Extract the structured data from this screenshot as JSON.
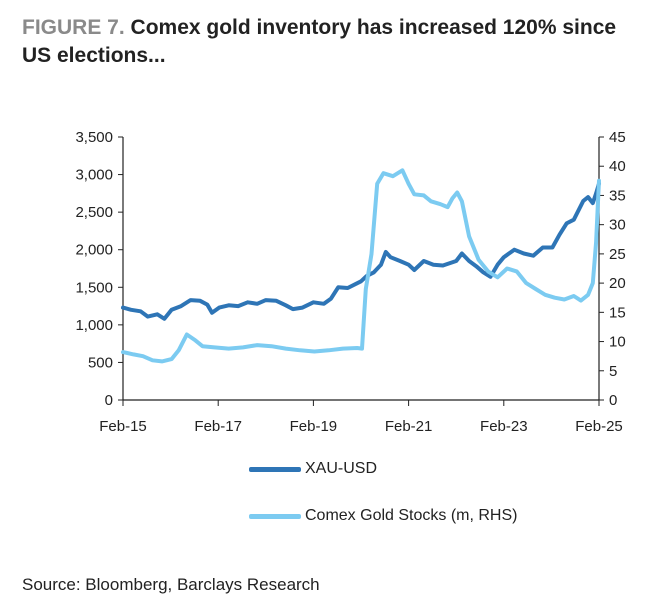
{
  "title": {
    "figure_label": "FIGURE 7.",
    "text": "Comex gold inventory has increased 120% since US elections..."
  },
  "source": "Source: Bloomberg, Barclays Research",
  "chart_data": {
    "type": "line",
    "x_ticks": [
      "Feb-15",
      "Feb-17",
      "Feb-19",
      "Feb-21",
      "Feb-23",
      "Feb-25"
    ],
    "x_range": [
      2015.08,
      2025.08
    ],
    "y_left": {
      "ticks": [
        "0",
        "500",
        "1,000",
        "1,500",
        "2,000",
        "2,500",
        "3,000",
        "3,500"
      ],
      "ylim": [
        0,
        3500
      ]
    },
    "y_right": {
      "ticks": [
        "0",
        "5",
        "10",
        "15",
        "20",
        "25",
        "30",
        "35",
        "40",
        "45"
      ],
      "ylim": [
        0,
        45
      ]
    },
    "grid": false,
    "legend": "bottom",
    "series": [
      {
        "name": "XAU-USD",
        "axis": "left",
        "color": "#2e75b6",
        "points": [
          [
            2015.08,
            1230
          ],
          [
            2015.25,
            1200
          ],
          [
            2015.45,
            1180
          ],
          [
            2015.6,
            1110
          ],
          [
            2015.8,
            1140
          ],
          [
            2015.95,
            1080
          ],
          [
            2016.1,
            1200
          ],
          [
            2016.3,
            1250
          ],
          [
            2016.5,
            1330
          ],
          [
            2016.7,
            1320
          ],
          [
            2016.85,
            1270
          ],
          [
            2016.95,
            1160
          ],
          [
            2017.1,
            1230
          ],
          [
            2017.3,
            1260
          ],
          [
            2017.5,
            1250
          ],
          [
            2017.7,
            1300
          ],
          [
            2017.9,
            1280
          ],
          [
            2018.08,
            1330
          ],
          [
            2018.3,
            1320
          ],
          [
            2018.5,
            1260
          ],
          [
            2018.65,
            1210
          ],
          [
            2018.85,
            1230
          ],
          [
            2019.08,
            1300
          ],
          [
            2019.3,
            1280
          ],
          [
            2019.45,
            1350
          ],
          [
            2019.6,
            1500
          ],
          [
            2019.8,
            1490
          ],
          [
            2020.08,
            1580
          ],
          [
            2020.2,
            1650
          ],
          [
            2020.35,
            1700
          ],
          [
            2020.5,
            1800
          ],
          [
            2020.6,
            1970
          ],
          [
            2020.7,
            1900
          ],
          [
            2020.9,
            1850
          ],
          [
            2021.08,
            1800
          ],
          [
            2021.2,
            1730
          ],
          [
            2021.4,
            1850
          ],
          [
            2021.6,
            1800
          ],
          [
            2021.8,
            1790
          ],
          [
            2022.08,
            1850
          ],
          [
            2022.2,
            1950
          ],
          [
            2022.35,
            1850
          ],
          [
            2022.5,
            1780
          ],
          [
            2022.65,
            1700
          ],
          [
            2022.8,
            1640
          ],
          [
            2022.95,
            1800
          ],
          [
            2023.08,
            1900
          ],
          [
            2023.3,
            2000
          ],
          [
            2023.5,
            1950
          ],
          [
            2023.7,
            1920
          ],
          [
            2023.9,
            2030
          ],
          [
            2024.1,
            2030
          ],
          [
            2024.25,
            2200
          ],
          [
            2024.4,
            2350
          ],
          [
            2024.55,
            2400
          ],
          [
            2024.75,
            2650
          ],
          [
            2024.85,
            2700
          ],
          [
            2024.95,
            2620
          ],
          [
            2025.02,
            2750
          ],
          [
            2025.08,
            2880
          ]
        ]
      },
      {
        "name": "Comex Gold Stocks  (m, RHS)",
        "axis": "right",
        "color": "#7ccbf1",
        "points": [
          [
            2015.08,
            8.2
          ],
          [
            2015.3,
            7.8
          ],
          [
            2015.5,
            7.5
          ],
          [
            2015.7,
            6.8
          ],
          [
            2015.9,
            6.6
          ],
          [
            2016.1,
            7.0
          ],
          [
            2016.25,
            8.5
          ],
          [
            2016.42,
            11.2
          ],
          [
            2016.6,
            10.2
          ],
          [
            2016.75,
            9.2
          ],
          [
            2017.0,
            9.0
          ],
          [
            2017.3,
            8.8
          ],
          [
            2017.6,
            9.0
          ],
          [
            2017.9,
            9.4
          ],
          [
            2018.2,
            9.2
          ],
          [
            2018.5,
            8.8
          ],
          [
            2018.8,
            8.5
          ],
          [
            2019.1,
            8.3
          ],
          [
            2019.4,
            8.5
          ],
          [
            2019.7,
            8.8
          ],
          [
            2020.0,
            8.9
          ],
          [
            2020.1,
            8.8
          ],
          [
            2020.18,
            19.0
          ],
          [
            2020.3,
            25.0
          ],
          [
            2020.42,
            37.0
          ],
          [
            2020.55,
            38.8
          ],
          [
            2020.75,
            38.3
          ],
          [
            2020.95,
            39.3
          ],
          [
            2021.08,
            37.0
          ],
          [
            2021.2,
            35.2
          ],
          [
            2021.4,
            35.0
          ],
          [
            2021.55,
            34.0
          ],
          [
            2021.75,
            33.5
          ],
          [
            2021.9,
            33.0
          ],
          [
            2022.0,
            34.5
          ],
          [
            2022.1,
            35.5
          ],
          [
            2022.2,
            34.0
          ],
          [
            2022.35,
            28.0
          ],
          [
            2022.55,
            24.0
          ],
          [
            2022.75,
            22.0
          ],
          [
            2022.95,
            21.0
          ],
          [
            2023.15,
            22.5
          ],
          [
            2023.35,
            22.0
          ],
          [
            2023.55,
            20.0
          ],
          [
            2023.75,
            19.0
          ],
          [
            2023.95,
            18.0
          ],
          [
            2024.15,
            17.5
          ],
          [
            2024.35,
            17.2
          ],
          [
            2024.55,
            17.8
          ],
          [
            2024.7,
            17.0
          ],
          [
            2024.85,
            18.0
          ],
          [
            2024.95,
            20.0
          ],
          [
            2025.02,
            27.0
          ],
          [
            2025.06,
            34.0
          ],
          [
            2025.08,
            37.5
          ]
        ]
      }
    ]
  }
}
